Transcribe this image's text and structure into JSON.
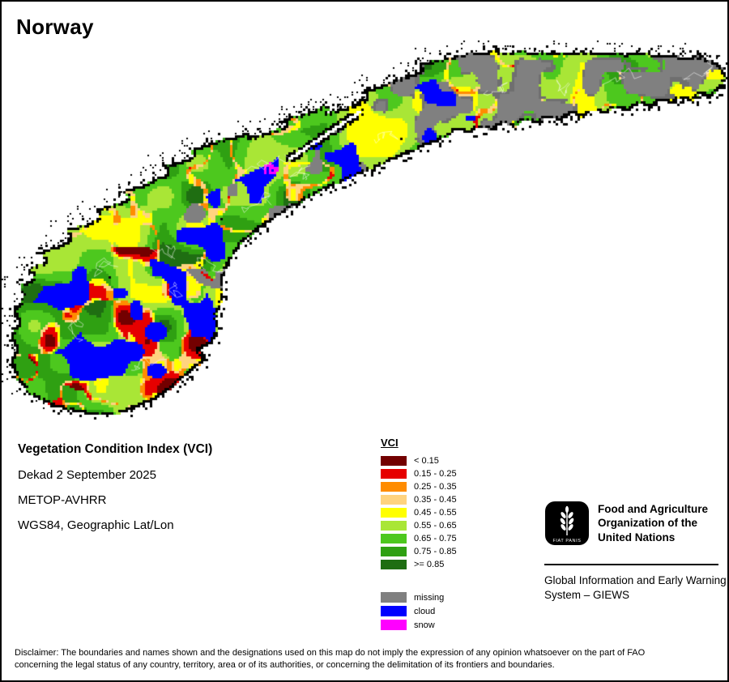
{
  "title": "Norway",
  "info": {
    "heading": "Vegetation Condition Index (VCI)",
    "dekad": "Dekad 2 September 2025",
    "sensor": "METOP-AVHRR",
    "projection": "WGS84, Geographic Lat/Lon"
  },
  "legend": {
    "title": "VCI",
    "classes": [
      {
        "label": "< 0.15",
        "color": "#730000"
      },
      {
        "label": "0.15 - 0.25",
        "color": "#E60000"
      },
      {
        "label": "0.25 - 0.35",
        "color": "#FF8C00"
      },
      {
        "label": "0.35 - 0.45",
        "color": "#FFD37F"
      },
      {
        "label": "0.45 - 0.55",
        "color": "#FFFF00"
      },
      {
        "label": "0.55 - 0.65",
        "color": "#A9E636"
      },
      {
        "label": "0.65 - 0.75",
        "color": "#4DC81E"
      },
      {
        "label": "0.75 - 0.85",
        "color": "#2FA012"
      },
      {
        "label": ">= 0.85",
        "color": "#1F6E12"
      }
    ],
    "extra": [
      {
        "label": "missing",
        "color": "#808080"
      },
      {
        "label": "cloud",
        "color": "#0000FF"
      },
      {
        "label": "snow",
        "color": "#FF00FF"
      }
    ]
  },
  "fao": {
    "org_name": "Food and Agriculture Organization of the United Nations",
    "giews": "Global Information and Early Warning System – GIEWS",
    "logo_motto": "FIAT PANIS"
  },
  "disclaimer": "Disclaimer: The boundaries and names shown and the designations used on this map do not imply the expression of any opinion whatsoever on the part of FAO concerning the legal status of any country, territory, area or of its authorities, or concerning the delimitation of its frontiers and boundaries."
}
